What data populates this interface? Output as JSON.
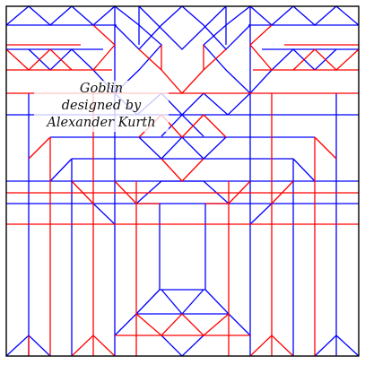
{
  "diagram": {
    "caption": {
      "line1": "Goblin",
      "line2": "designed by",
      "line3": "Alexander Kurth"
    },
    "colors": {
      "mountain_fold": "#ff0000",
      "valley_fold": "#0000ff",
      "border": "#000000",
      "background": "#ffffff"
    }
  }
}
